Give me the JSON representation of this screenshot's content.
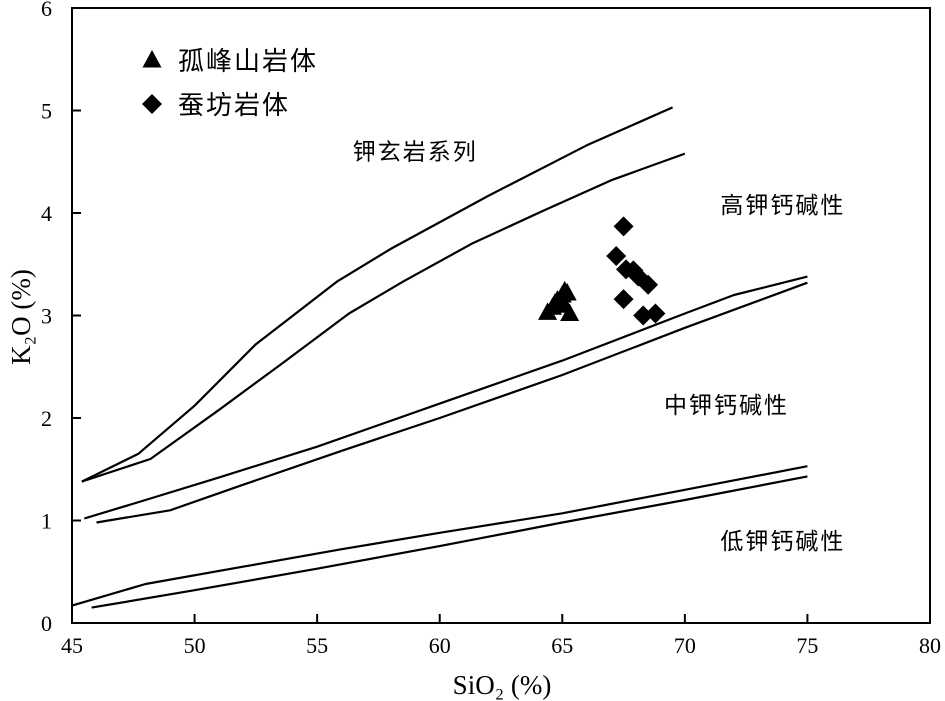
{
  "chart_data": {
    "type": "scatter",
    "xlabel": "SiO₂ (%)",
    "ylabel": "K₂O (%)",
    "xlim": [
      45,
      80
    ],
    "ylim": [
      0,
      6
    ],
    "xticks": [
      45,
      50,
      55,
      60,
      65,
      70,
      75,
      80
    ],
    "yticks": [
      0,
      1,
      2,
      3,
      4,
      5,
      6
    ],
    "grid": false,
    "legend_position": "top-left",
    "series": [
      {
        "name": "孤峰山岩体",
        "marker": "triangle",
        "color": "#000000",
        "points": [
          [
            64.4,
            3.03
          ],
          [
            64.6,
            3.08
          ],
          [
            64.7,
            3.12
          ],
          [
            64.8,
            3.15
          ],
          [
            64.9,
            3.1
          ],
          [
            65.0,
            3.2
          ],
          [
            65.1,
            3.24
          ],
          [
            65.2,
            3.22
          ],
          [
            65.3,
            3.02
          ],
          [
            65.0,
            3.14
          ]
        ]
      },
      {
        "name": "蚕坊岩体",
        "marker": "diamond",
        "color": "#000000",
        "points": [
          [
            67.5,
            3.87
          ],
          [
            67.2,
            3.58
          ],
          [
            67.6,
            3.45
          ],
          [
            67.9,
            3.44
          ],
          [
            68.1,
            3.38
          ],
          [
            68.5,
            3.3
          ],
          [
            67.5,
            3.16
          ],
          [
            68.3,
            3.0
          ],
          [
            68.8,
            3.02
          ]
        ]
      }
    ],
    "boundary_lines": [
      {
        "name": "shoshonite-high-k-upper",
        "points": [
          [
            45.4,
            1.38
          ],
          [
            47.7,
            1.65
          ],
          [
            50,
            2.12
          ],
          [
            52.5,
            2.72
          ],
          [
            55.8,
            3.33
          ],
          [
            58,
            3.65
          ],
          [
            62,
            4.17
          ],
          [
            66,
            4.66
          ],
          [
            69.5,
            5.03
          ]
        ]
      },
      {
        "name": "shoshonite-high-k-lower",
        "points": [
          [
            45.4,
            1.38
          ],
          [
            48.2,
            1.6
          ],
          [
            51,
            2.08
          ],
          [
            53.5,
            2.52
          ],
          [
            56.3,
            3.02
          ],
          [
            58.5,
            3.33
          ],
          [
            61.3,
            3.7
          ],
          [
            64.2,
            4.02
          ],
          [
            67,
            4.32
          ],
          [
            70,
            4.58
          ]
        ]
      },
      {
        "name": "high-k-medium-k-upper",
        "points": [
          [
            45.5,
            1.02
          ],
          [
            48,
            1.2
          ],
          [
            51,
            1.42
          ],
          [
            55,
            1.72
          ],
          [
            60,
            2.14
          ],
          [
            65,
            2.56
          ],
          [
            70,
            3.02
          ],
          [
            72,
            3.2
          ],
          [
            75,
            3.38
          ]
        ]
      },
      {
        "name": "high-k-medium-k-lower",
        "points": [
          [
            46.0,
            0.98
          ],
          [
            49,
            1.1
          ],
          [
            52,
            1.35
          ],
          [
            56,
            1.68
          ],
          [
            60,
            2.0
          ],
          [
            65,
            2.42
          ],
          [
            70,
            2.88
          ],
          [
            75,
            3.32
          ]
        ]
      },
      {
        "name": "medium-k-low-k-upper",
        "points": [
          [
            45.0,
            0.17
          ],
          [
            48,
            0.38
          ],
          [
            52,
            0.55
          ],
          [
            56,
            0.72
          ],
          [
            60,
            0.88
          ],
          [
            65,
            1.07
          ],
          [
            70,
            1.3
          ],
          [
            75,
            1.53
          ]
        ]
      },
      {
        "name": "medium-k-low-k-lower",
        "points": [
          [
            45.8,
            0.15
          ],
          [
            50,
            0.32
          ],
          [
            55,
            0.53
          ],
          [
            60,
            0.75
          ],
          [
            65,
            0.98
          ],
          [
            70,
            1.2
          ],
          [
            75,
            1.43
          ]
        ]
      }
    ],
    "region_labels": [
      {
        "text": "钾玄岩系列",
        "x": 59.0,
        "y": 4.52
      },
      {
        "text": "高钾钙碱性",
        "x": 74.0,
        "y": 4.0
      },
      {
        "text": "中钾钙碱性",
        "x": 71.7,
        "y": 2.05
      },
      {
        "text": "低钾钙碱性",
        "x": 74.0,
        "y": 0.72
      }
    ]
  }
}
